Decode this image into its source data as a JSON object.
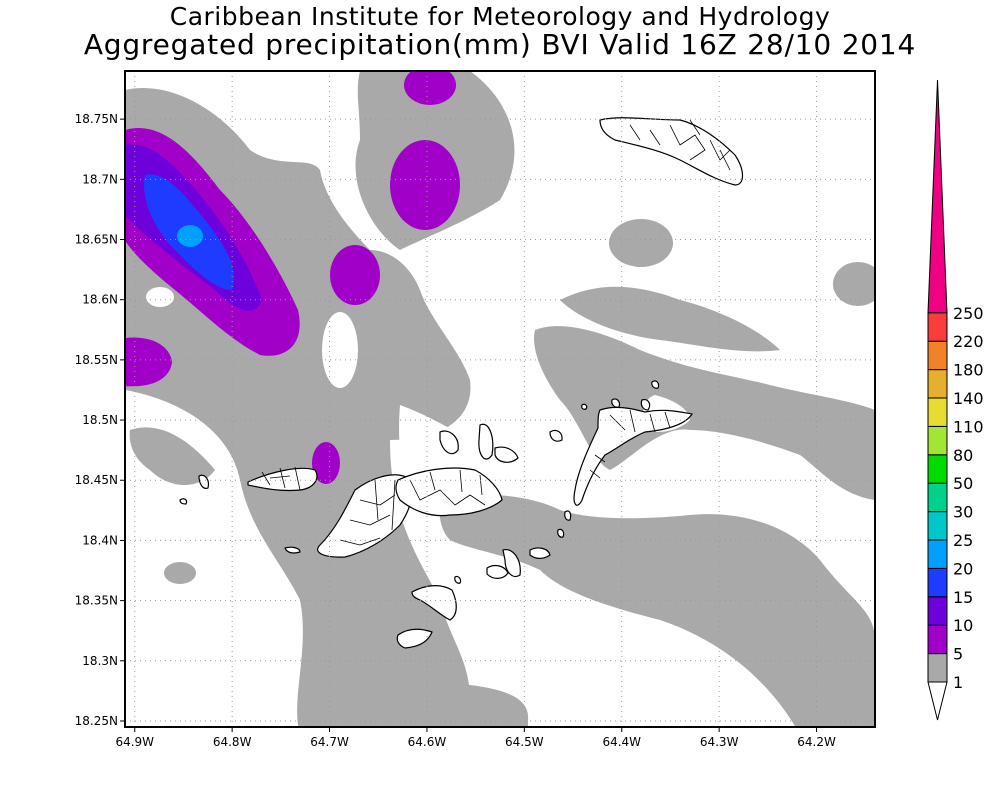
{
  "header": {
    "line1": "Caribbean Institute for Meteorology and Hydrology",
    "line2": "Aggregated precipitation(mm) BVI Valid 16Z 28/10 2014"
  },
  "map": {
    "lon_range": [
      -64.91,
      -64.14
    ],
    "lat_range": [
      18.245,
      18.79
    ],
    "x_ticks": [
      "64.9W",
      "64.8W",
      "64.7W",
      "64.6W",
      "64.5W",
      "64.4W",
      "64.3W",
      "64.2W"
    ],
    "y_ticks": [
      "18.75N",
      "18.7N",
      "18.65N",
      "18.6N",
      "18.55N",
      "18.5N",
      "18.45N",
      "18.4N",
      "18.35N",
      "18.3N",
      "18.25N"
    ],
    "grid": true
  },
  "colorbar": {
    "levels": [
      "1",
      "5",
      "10",
      "15",
      "20",
      "25",
      "30",
      "50",
      "80",
      "110",
      "140",
      "180",
      "220",
      "250"
    ],
    "colors": [
      "#a9a9a9",
      "#a000c8",
      "#6e00dc",
      "#1e3cff",
      "#00a0ff",
      "#00c8c8",
      "#00d28c",
      "#00dc00",
      "#a0e632",
      "#e6dc32",
      "#e6af2d",
      "#f08228",
      "#fa3c3c",
      "#f00082"
    ]
  }
}
